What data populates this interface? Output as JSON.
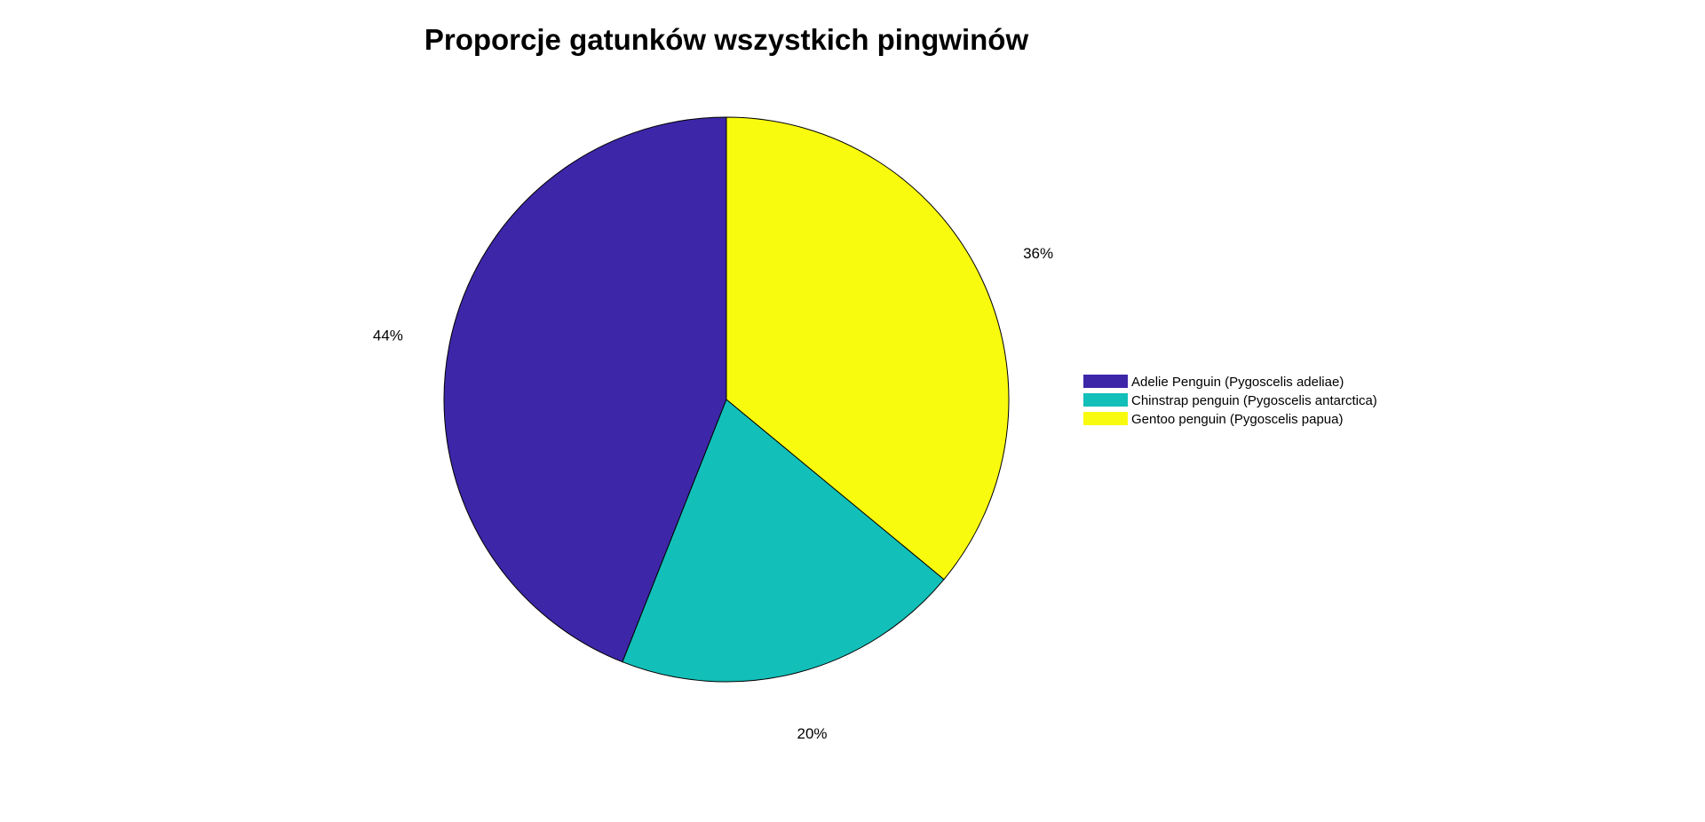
{
  "chart_data": {
    "type": "pie",
    "title": "Proporcje gatunków wszystkich pingwinów",
    "slices": [
      {
        "name": "Adelie Penguin (Pygoscelis adeliae)",
        "value": 44,
        "label": "44%",
        "color": "#3e26a8"
      },
      {
        "name": "Chinstrap penguin (Pygoscelis antarctica)",
        "value": 20,
        "label": "20%",
        "color": "#13bfb9"
      },
      {
        "name": "Gentoo penguin (Pygoscelis papua)",
        "value": 36,
        "label": "36%",
        "color": "#f9fb0e"
      }
    ],
    "start_angle_deg": 90,
    "direction": "counterclockwise",
    "legend": {
      "placement": "right"
    }
  }
}
